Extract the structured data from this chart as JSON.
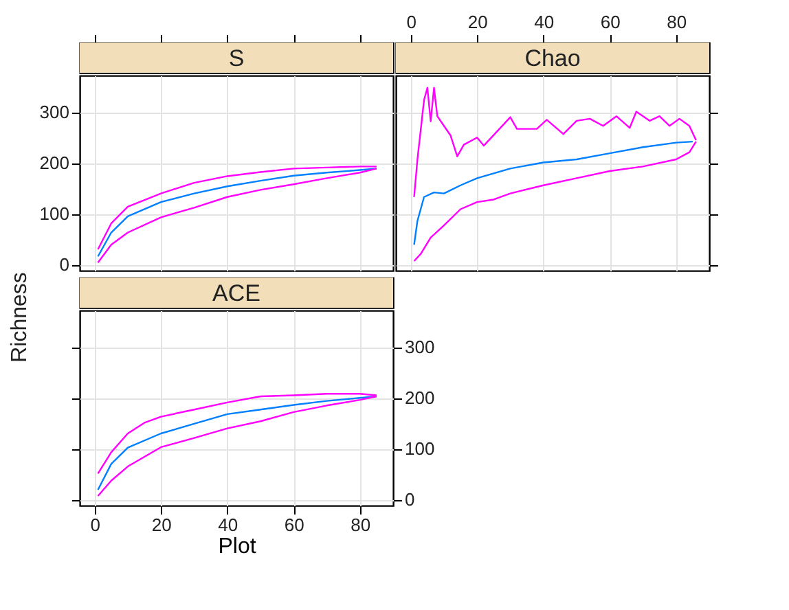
{
  "chart_data": [
    {
      "type": "line",
      "title": "S",
      "ylabel": "Richness",
      "xlim": [
        -4.5,
        90
      ],
      "xticks": [
        0,
        20,
        40,
        60,
        80
      ],
      "ylim": [
        -12,
        372
      ],
      "yticks": [
        0,
        100,
        200,
        300
      ],
      "grid": true,
      "tick_labels": "y",
      "series": [
        {
          "color": "#0080ff",
          "x": [
            1,
            5,
            10,
            20,
            30,
            40,
            50,
            60,
            70,
            80,
            85
          ],
          "values": [
            16,
            63,
            95,
            123,
            140,
            154,
            165,
            175,
            181,
            186,
            189
          ]
        },
        {
          "color": "#ff00ff",
          "x": [
            1,
            5,
            10,
            20,
            30,
            40,
            50,
            60,
            70,
            80,
            85
          ],
          "values": [
            30,
            81,
            114,
            140,
            161,
            174,
            182,
            189,
            191,
            193,
            193
          ]
        },
        {
          "color": "#ff00ff",
          "x": [
            1,
            5,
            10,
            20,
            30,
            40,
            50,
            60,
            70,
            80,
            85
          ],
          "values": [
            4,
            39,
            63,
            93,
            112,
            133,
            147,
            158,
            170,
            181,
            189
          ]
        }
      ]
    },
    {
      "type": "line",
      "title": "Chao",
      "xlim": [
        -4.5,
        90
      ],
      "xticks": [
        0,
        20,
        40,
        60,
        80
      ],
      "ylim": [
        -12,
        372
      ],
      "yticks": [
        0,
        100,
        200,
        300
      ],
      "grid": true,
      "tick_labels": "x",
      "series": [
        {
          "color": "#0080ff",
          "x": [
            1,
            2,
            4,
            7,
            10,
            15,
            20,
            30,
            40,
            50,
            60,
            70,
            80,
            85
          ],
          "values": [
            39,
            86,
            133,
            142,
            140,
            156,
            170,
            189,
            201,
            207,
            219,
            231,
            240,
            242
          ]
        },
        {
          "color": "#ff00ff",
          "x": [
            1,
            2,
            4,
            5,
            6,
            7,
            8,
            10,
            12,
            14,
            16,
            20,
            22,
            30,
            32,
            38,
            41,
            46,
            50,
            54,
            58,
            62,
            66,
            68,
            72,
            75,
            78,
            81,
            84,
            86
          ],
          "values": [
            133,
            207,
            324,
            348,
            282,
            348,
            292,
            273,
            254,
            213,
            236,
            250,
            234,
            290,
            267,
            267,
            285,
            257,
            283,
            287,
            273,
            292,
            269,
            301,
            283,
            292,
            273,
            287,
            273,
            245
          ]
        },
        {
          "color": "#ff00ff",
          "x": [
            1,
            3,
            6,
            10,
            15,
            20,
            25,
            30,
            40,
            50,
            60,
            70,
            80,
            84,
            86
          ],
          "values": [
            7,
            21,
            53,
            77,
            109,
            123,
            128,
            140,
            156,
            170,
            184,
            193,
            207,
            221,
            242
          ]
        }
      ]
    },
    {
      "type": "line",
      "title": "ACE",
      "xlabel": "Plot",
      "xlim": [
        -4.5,
        90
      ],
      "xticks": [
        0,
        20,
        40,
        60,
        80
      ],
      "ylim": [
        -12,
        372
      ],
      "yticks": [
        0,
        100,
        200,
        300
      ],
      "grid": true,
      "series": [
        {
          "color": "#0080ff",
          "x": [
            1,
            5,
            10,
            20,
            30,
            40,
            50,
            60,
            70,
            80,
            85
          ],
          "values": [
            19,
            70,
            102,
            130,
            149,
            168,
            177,
            186,
            194,
            200,
            203
          ]
        },
        {
          "color": "#ff00ff",
          "x": [
            1,
            5,
            10,
            15,
            20,
            30,
            40,
            50,
            60,
            70,
            80,
            85
          ],
          "values": [
            51,
            93,
            130,
            151,
            163,
            177,
            191,
            203,
            205,
            208,
            208,
            205
          ]
        },
        {
          "color": "#ff00ff",
          "x": [
            1,
            5,
            10,
            20,
            30,
            40,
            50,
            60,
            70,
            80,
            85
          ],
          "values": [
            7,
            37,
            65,
            103,
            121,
            140,
            154,
            172,
            185,
            196,
            203
          ]
        }
      ]
    }
  ]
}
